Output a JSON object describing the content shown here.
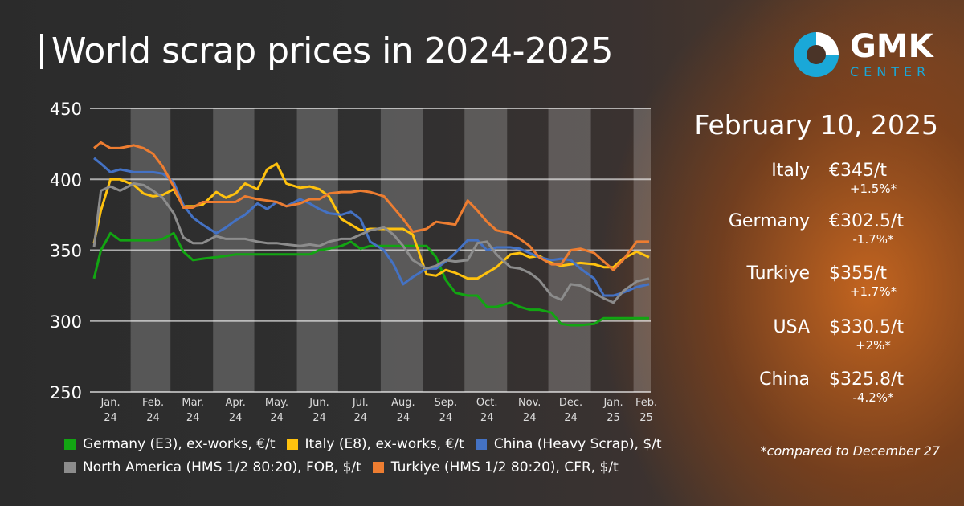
{
  "title": "World scrap prices in 2024-2025",
  "logo": {
    "text": "GMK",
    "subtext": "CENTER",
    "colors": {
      "ring": "#1aa8d8",
      "segment": "#ffffff"
    }
  },
  "panel": {
    "date": "February 10, 2025",
    "rows": [
      {
        "country": "Italy",
        "price": "€345/t",
        "change": "+1.5%*"
      },
      {
        "country": "Germany",
        "price": "€302.5/t",
        "change": "-1.7%*"
      },
      {
        "country": "Turkiye",
        "price": "$355/t",
        "change": "+1.7%*"
      },
      {
        "country": "USA",
        "price": "$330.5/t",
        "change": "+2%*"
      },
      {
        "country": "China",
        "price": "$325.8/t",
        "change": "-4.2%*"
      }
    ],
    "footnote": "*compared to December 27"
  },
  "chart_data": {
    "type": "line",
    "ylim": [
      250,
      450
    ],
    "yticks": [
      "450",
      "400",
      "350",
      "300",
      "250"
    ],
    "ytick_values": [
      450,
      400,
      350,
      300,
      250
    ],
    "grid": true,
    "legend_position": "bottom",
    "xticks": [
      {
        "date": "2024-01-15",
        "month": "Jan.",
        "year": "24"
      },
      {
        "date": "2024-02-15",
        "month": "Feb.",
        "year": "24"
      },
      {
        "date": "2024-03-15",
        "month": "Mar.",
        "year": "24"
      },
      {
        "date": "2024-04-15",
        "month": "Apr.",
        "year": "24"
      },
      {
        "date": "2024-05-15",
        "month": "May.",
        "year": "24"
      },
      {
        "date": "2024-06-15",
        "month": "Jun.",
        "year": "24"
      },
      {
        "date": "2024-07-15",
        "month": "Jul.",
        "year": "24"
      },
      {
        "date": "2024-08-15",
        "month": "Aug.",
        "year": "24"
      },
      {
        "date": "2024-09-15",
        "month": "Sep.",
        "year": "24"
      },
      {
        "date": "2024-10-15",
        "month": "Oct.",
        "year": "24"
      },
      {
        "date": "2024-11-15",
        "month": "Nov.",
        "year": "24"
      },
      {
        "date": "2024-12-15",
        "month": "Dec.",
        "year": "24"
      },
      {
        "date": "2025-01-15",
        "month": "Jan.",
        "year": "25"
      },
      {
        "date": "2025-02-08",
        "month": "Feb.",
        "year": "25"
      }
    ],
    "dates": [
      "2024-01-03",
      "2024-01-08",
      "2024-01-15",
      "2024-01-22",
      "2024-02-01",
      "2024-02-08",
      "2024-02-15",
      "2024-02-22",
      "2024-03-01",
      "2024-03-08",
      "2024-03-15",
      "2024-03-22",
      "2024-04-01",
      "2024-04-08",
      "2024-04-15",
      "2024-04-22",
      "2024-05-01",
      "2024-05-08",
      "2024-05-15",
      "2024-05-22",
      "2024-06-01",
      "2024-06-08",
      "2024-06-15",
      "2024-06-22",
      "2024-07-01",
      "2024-07-08",
      "2024-07-15",
      "2024-07-22",
      "2024-08-01",
      "2024-08-08",
      "2024-08-15",
      "2024-08-22",
      "2024-09-01",
      "2024-09-08",
      "2024-09-15",
      "2024-09-22",
      "2024-10-01",
      "2024-10-08",
      "2024-10-15",
      "2024-10-22",
      "2024-11-01",
      "2024-11-08",
      "2024-11-15",
      "2024-11-22",
      "2024-12-01",
      "2024-12-08",
      "2024-12-15",
      "2024-12-22",
      "2025-01-01",
      "2025-01-08",
      "2025-01-15",
      "2025-01-22",
      "2025-02-01",
      "2025-02-10"
    ],
    "series": [
      {
        "name": "Germany (E3), ex-works, €/t",
        "color": "#12a512",
        "values": [
          330,
          350,
          362,
          357,
          357,
          357,
          357,
          358,
          362,
          349,
          343,
          344,
          345,
          346,
          347,
          347,
          347,
          347,
          347,
          347,
          347,
          347,
          350,
          351,
          353,
          356,
          351,
          353,
          353,
          353,
          353,
          353,
          353,
          345,
          329,
          320,
          318,
          318,
          310,
          310,
          313,
          310,
          308,
          308,
          306,
          298,
          297,
          297,
          298,
          302,
          302,
          302,
          302,
          302
        ]
      },
      {
        "name": "Italy (E8), ex-works, €/t",
        "color": "#ffc20e",
        "values": [
          355,
          378,
          400,
          400,
          396,
          390,
          388,
          389,
          393,
          381,
          381,
          382,
          391,
          387,
          390,
          397,
          393,
          407,
          411,
          397,
          394,
          395,
          393,
          388,
          372,
          368,
          364,
          365,
          365,
          365,
          365,
          361,
          333,
          332,
          336,
          334,
          330,
          330,
          334,
          338,
          347,
          348,
          345,
          346,
          341,
          339,
          340,
          341,
          340,
          338,
          338,
          344,
          349,
          345
        ]
      },
      {
        "name": "China (Heavy Scrap), $/t",
        "color": "#4472c4",
        "values": [
          415,
          411,
          405,
          407,
          405,
          405,
          405,
          404,
          398,
          382,
          373,
          368,
          362,
          366,
          371,
          375,
          383,
          379,
          384,
          381,
          386,
          383,
          379,
          376,
          375,
          377,
          372,
          356,
          350,
          340,
          326,
          331,
          337,
          337,
          342,
          348,
          357,
          357,
          350,
          352,
          352,
          351,
          348,
          345,
          343,
          344,
          343,
          337,
          330,
          318,
          318,
          320,
          324,
          326
        ]
      },
      {
        "name": "North America (HMS 1/2 80:20), FOB, $/t",
        "color": "#8c8c8c",
        "values": [
          352,
          392,
          395,
          392,
          397,
          396,
          392,
          387,
          376,
          359,
          355,
          355,
          360,
          358,
          358,
          358,
          356,
          355,
          355,
          354,
          353,
          354,
          353,
          356,
          358,
          358,
          361,
          364,
          366,
          361,
          353,
          343,
          337,
          339,
          343,
          342,
          343,
          355,
          356,
          347,
          338,
          337,
          334,
          329,
          318,
          315,
          326,
          325,
          320,
          316,
          313,
          321,
          328,
          330
        ]
      },
      {
        "name": "Turkiye (HMS 1/2 80:20), CFR, $/t",
        "color": "#ed7d31",
        "values": [
          422,
          426,
          422,
          422,
          424,
          422,
          418,
          409,
          395,
          380,
          380,
          384,
          384,
          384,
          384,
          388,
          386,
          385,
          384,
          381,
          383,
          386,
          386,
          390,
          391,
          391,
          392,
          391,
          388,
          380,
          372,
          363,
          365,
          370,
          369,
          368,
          385,
          378,
          370,
          364,
          362,
          358,
          353,
          345,
          340,
          340,
          350,
          351,
          348,
          342,
          336,
          343,
          356,
          356
        ]
      }
    ]
  }
}
